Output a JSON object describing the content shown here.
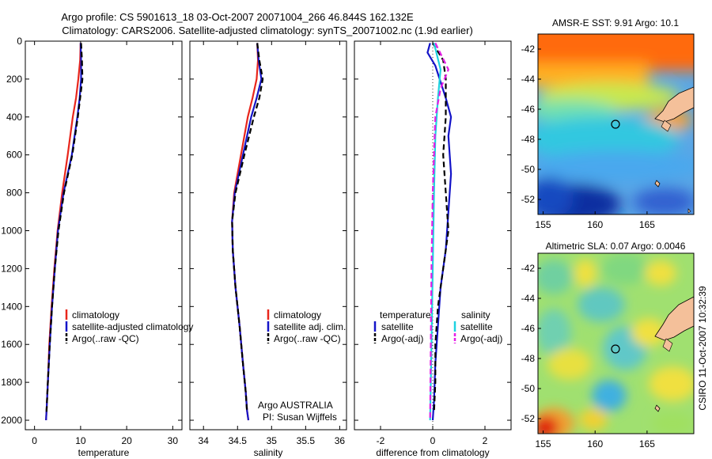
{
  "figure": {
    "title_line1": "Argo profile: CS 5901613_18 03-Oct-2007 20071004_266 46.844S 162.132E",
    "title_line2": "Climatology: CARS2006. Satellite-adjusted climatology: synTS_20071002.nc (1.9d earlier)",
    "side_text": "CSIRO 11-Oct-2007 10:32:39"
  },
  "colors": {
    "climatology": "#e8261c",
    "satellite": "#1414c8",
    "argo": "#000000",
    "cyan": "#1ed2e0",
    "magenta": "#e61ee6",
    "land": "#f4c09a"
  },
  "chart_data": [
    {
      "type": "line",
      "xlabel": "temperature",
      "ylabel": "",
      "xlim": [
        -2,
        32
      ],
      "ylim": [
        2050,
        0
      ],
      "xticks": [
        0,
        10,
        20,
        30
      ],
      "yticks": [
        0,
        200,
        400,
        600,
        800,
        1000,
        1200,
        1400,
        1600,
        1800,
        2000
      ],
      "legend": {
        "placement": "lower-center",
        "entries": [
          "climatology",
          "satellite-adjusted climatology",
          "Argo(..raw -QC)"
        ]
      },
      "series": [
        {
          "name": "climatology",
          "color": "#e8261c",
          "style": "solid",
          "x": [
            10.0,
            9.9,
            9.5,
            9.0,
            8.3,
            7.2,
            6.0,
            5.0,
            4.3,
            3.7,
            3.2,
            2.9,
            2.7,
            2.6,
            2.5
          ],
          "y": [
            10,
            100,
            200,
            300,
            400,
            600,
            800,
            1000,
            1200,
            1400,
            1600,
            1800,
            1900,
            1950,
            2000
          ]
        },
        {
          "name": "satellite-adjusted climatology",
          "color": "#1414c8",
          "style": "solid",
          "x": [
            10.0,
            10.1,
            10.1,
            9.8,
            9.3,
            8.1,
            6.3,
            5.1,
            4.4,
            3.8,
            3.3,
            2.9,
            2.7,
            2.6,
            2.5
          ],
          "y": [
            10,
            100,
            200,
            300,
            400,
            600,
            800,
            1000,
            1200,
            1400,
            1600,
            1800,
            1900,
            1950,
            2000
          ]
        },
        {
          "name": "Argo(..raw -QC)",
          "color": "#000000",
          "style": "dashed",
          "x": [
            10.1,
            10.3,
            10.4,
            9.9,
            9.4,
            8.2,
            6.4,
            5.2,
            4.4,
            3.8,
            3.3,
            2.9,
            2.7,
            2.6
          ],
          "y": [
            10,
            100,
            200,
            300,
            400,
            600,
            800,
            1000,
            1200,
            1400,
            1600,
            1800,
            1900,
            1960
          ]
        }
      ]
    },
    {
      "type": "line",
      "xlabel": "salinity",
      "xlim": [
        33.8,
        36.1
      ],
      "ylim": [
        2050,
        0
      ],
      "xticks": [
        34,
        34.5,
        35,
        35.5,
        36
      ],
      "xticklabels": [
        "34",
        "34.5",
        "35",
        "35.5",
        "36"
      ],
      "legend": {
        "placement": "lower-center",
        "entries": [
          "climatology",
          "satellite adj. clim.",
          "Argo(..raw -QC)"
        ]
      },
      "annotation": [
        "Argo AUSTRALIA",
        "PI: Susan Wijffels"
      ],
      "series": [
        {
          "name": "climatology",
          "color": "#e8261c",
          "style": "solid",
          "x": [
            34.79,
            34.8,
            34.78,
            34.72,
            34.65,
            34.55,
            34.45,
            34.42,
            34.43,
            34.47,
            34.53,
            34.58,
            34.62,
            34.64,
            34.66
          ],
          "y": [
            10,
            100,
            200,
            300,
            400,
            600,
            800,
            950,
            1100,
            1300,
            1500,
            1700,
            1850,
            1950,
            2000
          ]
        },
        {
          "name": "satellite adj. clim.",
          "color": "#1414c8",
          "style": "solid",
          "x": [
            34.79,
            34.81,
            34.85,
            34.78,
            34.7,
            34.58,
            34.46,
            34.42,
            34.43,
            34.47,
            34.53,
            34.58,
            34.62,
            34.64,
            34.66
          ],
          "y": [
            10,
            100,
            200,
            300,
            400,
            600,
            800,
            950,
            1100,
            1300,
            1500,
            1700,
            1850,
            1950,
            2000
          ]
        },
        {
          "name": "Argo(..raw -QC)",
          "color": "#000000",
          "style": "dashed",
          "x": [
            34.79,
            34.82,
            34.87,
            34.82,
            34.74,
            34.6,
            34.47,
            34.42,
            34.43,
            34.47,
            34.53,
            34.58,
            34.62,
            34.64
          ],
          "y": [
            10,
            100,
            200,
            300,
            400,
            600,
            800,
            950,
            1100,
            1300,
            1500,
            1700,
            1850,
            1960
          ]
        }
      ]
    },
    {
      "type": "line",
      "xlabel": "difference from climatology",
      "xlim": [
        -3,
        3
      ],
      "ylim": [
        2050,
        0
      ],
      "xticks": [
        -2,
        0,
        2
      ],
      "legend": {
        "placement": "lower-center",
        "groups": [
          {
            "heading": "temperature",
            "entries": [
              "satellite",
              "Argo(-adj)"
            ]
          },
          {
            "heading": "salinity",
            "entries": [
              "satellite",
              "Argo(-adj)"
            ]
          }
        ]
      },
      "series": [
        {
          "name": "temperature satellite",
          "color": "#1414c8",
          "style": "solid",
          "x": [
            -0.1,
            -0.2,
            0.1,
            0.5,
            0.7,
            0.6,
            0.7,
            0.6,
            0.5,
            0.3,
            0.2,
            0.1,
            0.05,
            0.0
          ],
          "y": [
            10,
            60,
            130,
            300,
            400,
            500,
            700,
            900,
            1100,
            1300,
            1500,
            1700,
            1900,
            2000
          ]
        },
        {
          "name": "temperature Argo(-adj)",
          "color": "#000000",
          "style": "dashed",
          "x": [
            0.0,
            0.4,
            0.5,
            0.5,
            0.4,
            0.5,
            0.6,
            0.4,
            0.2,
            0.1,
            0.1,
            0.05
          ],
          "y": [
            10,
            100,
            200,
            400,
            600,
            800,
            1000,
            1200,
            1400,
            1600,
            1800,
            1960
          ]
        },
        {
          "name": "salinity satellite",
          "color": "#1ed2e0",
          "style": "solid",
          "x": [
            0.05,
            0.3,
            0.2,
            0.1,
            0.05,
            0.0,
            -0.05,
            -0.1
          ],
          "y": [
            10,
            150,
            300,
            500,
            800,
            1200,
            1600,
            2000
          ]
        },
        {
          "name": "salinity Argo(-adj)",
          "color": "#e61ee6",
          "style": "dashed",
          "x": [
            0.1,
            0.6,
            0.3,
            0.1,
            0.0,
            -0.05,
            -0.1
          ],
          "y": [
            10,
            150,
            250,
            400,
            800,
            1200,
            2000
          ]
        }
      ]
    },
    {
      "type": "heatmap",
      "title": "AMSR-E SST: 9.91 Argo: 10.1",
      "xlim": [
        154.5,
        169.5
      ],
      "ylim": [
        -53,
        -41
      ],
      "xticks": [
        155,
        160,
        165
      ],
      "yticks": [
        -42,
        -44,
        -46,
        -48,
        -50,
        -52
      ],
      "argo_position": {
        "lon": 162.132,
        "lat": -46.844
      }
    },
    {
      "type": "heatmap",
      "title": "Altimetric SLA: 0.07 Argo: 0.0046",
      "xlim": [
        154.5,
        169.5
      ],
      "ylim": [
        -53,
        -41
      ],
      "xticks": [
        155,
        160,
        165
      ],
      "yticks": [
        -42,
        -44,
        -46,
        -48,
        -50,
        -52
      ],
      "argo_position": {
        "lon": 162.132,
        "lat": -46.844
      }
    }
  ]
}
